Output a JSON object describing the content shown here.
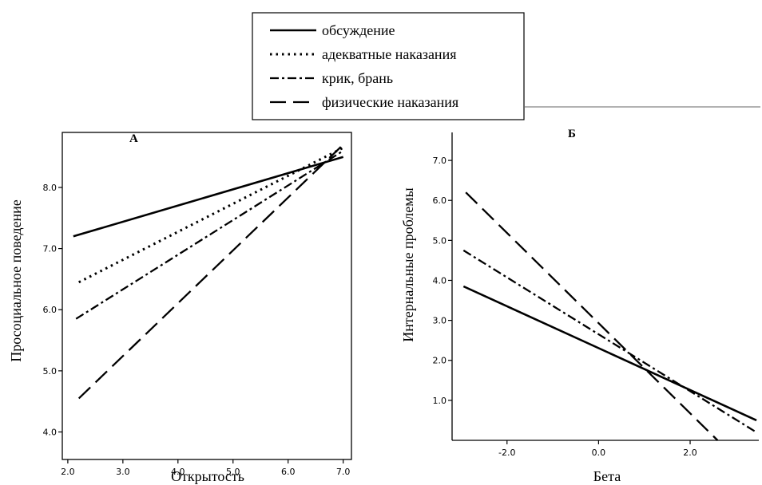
{
  "legend": {
    "items": [
      {
        "label": "обсуждение",
        "style": "solid"
      },
      {
        "label": "адекватные наказания",
        "style": "dotted"
      },
      {
        "label": "крик, брань",
        "style": "dashdot"
      },
      {
        "label": "физические наказания",
        "style": "dashed"
      }
    ]
  },
  "chart_data": [
    {
      "type": "line",
      "title": "А",
      "xlabel": "Открытость",
      "ylabel": "Просоциальное поведение",
      "xlim": [
        1.9,
        7.15
      ],
      "ylim": [
        3.55,
        8.9
      ],
      "xticks": [
        "2.0",
        "3.0",
        "4.0",
        "5.0",
        "6.0",
        "7.0"
      ],
      "yticks": [
        "4.0",
        "5.0",
        "6.0",
        "7.0",
        "8.0"
      ],
      "grid": false,
      "series": [
        {
          "name": "обсуждение",
          "style": "solid",
          "x": [
            2.1,
            7.0
          ],
          "y": [
            7.2,
            8.5
          ]
        },
        {
          "name": "адекватные наказания",
          "style": "dotted",
          "x": [
            2.2,
            7.0
          ],
          "y": [
            6.45,
            8.65
          ]
        },
        {
          "name": "крик, брань",
          "style": "dashdot",
          "x": [
            2.15,
            7.0
          ],
          "y": [
            5.85,
            8.6
          ]
        },
        {
          "name": "физические наказания",
          "style": "dashed",
          "x": [
            2.2,
            7.0
          ],
          "y": [
            4.55,
            8.7
          ]
        }
      ]
    },
    {
      "type": "line",
      "title": "Б",
      "xlabel": "Бета",
      "ylabel": "Интернальные проблемы",
      "xlim": [
        -3.2,
        3.5
      ],
      "ylim": [
        0.0,
        7.7
      ],
      "xticks": [
        "-2.0",
        "0.0",
        "2.0"
      ],
      "yticks": [
        "1.0",
        "2.0",
        "3.0",
        "4.0",
        "5.0",
        "6.0",
        "7.0"
      ],
      "grid": false,
      "series": [
        {
          "name": "обсуждение",
          "style": "solid",
          "x": [
            -2.95,
            3.45
          ],
          "y": [
            3.85,
            0.5
          ]
        },
        {
          "name": "крик, брань",
          "style": "dashdot",
          "x": [
            -2.95,
            3.45
          ],
          "y": [
            4.75,
            0.2
          ]
        },
        {
          "name": "физические наказания",
          "style": "dashed",
          "x": [
            -2.9,
            2.6
          ],
          "y": [
            6.2,
            0.0
          ]
        }
      ]
    }
  ]
}
